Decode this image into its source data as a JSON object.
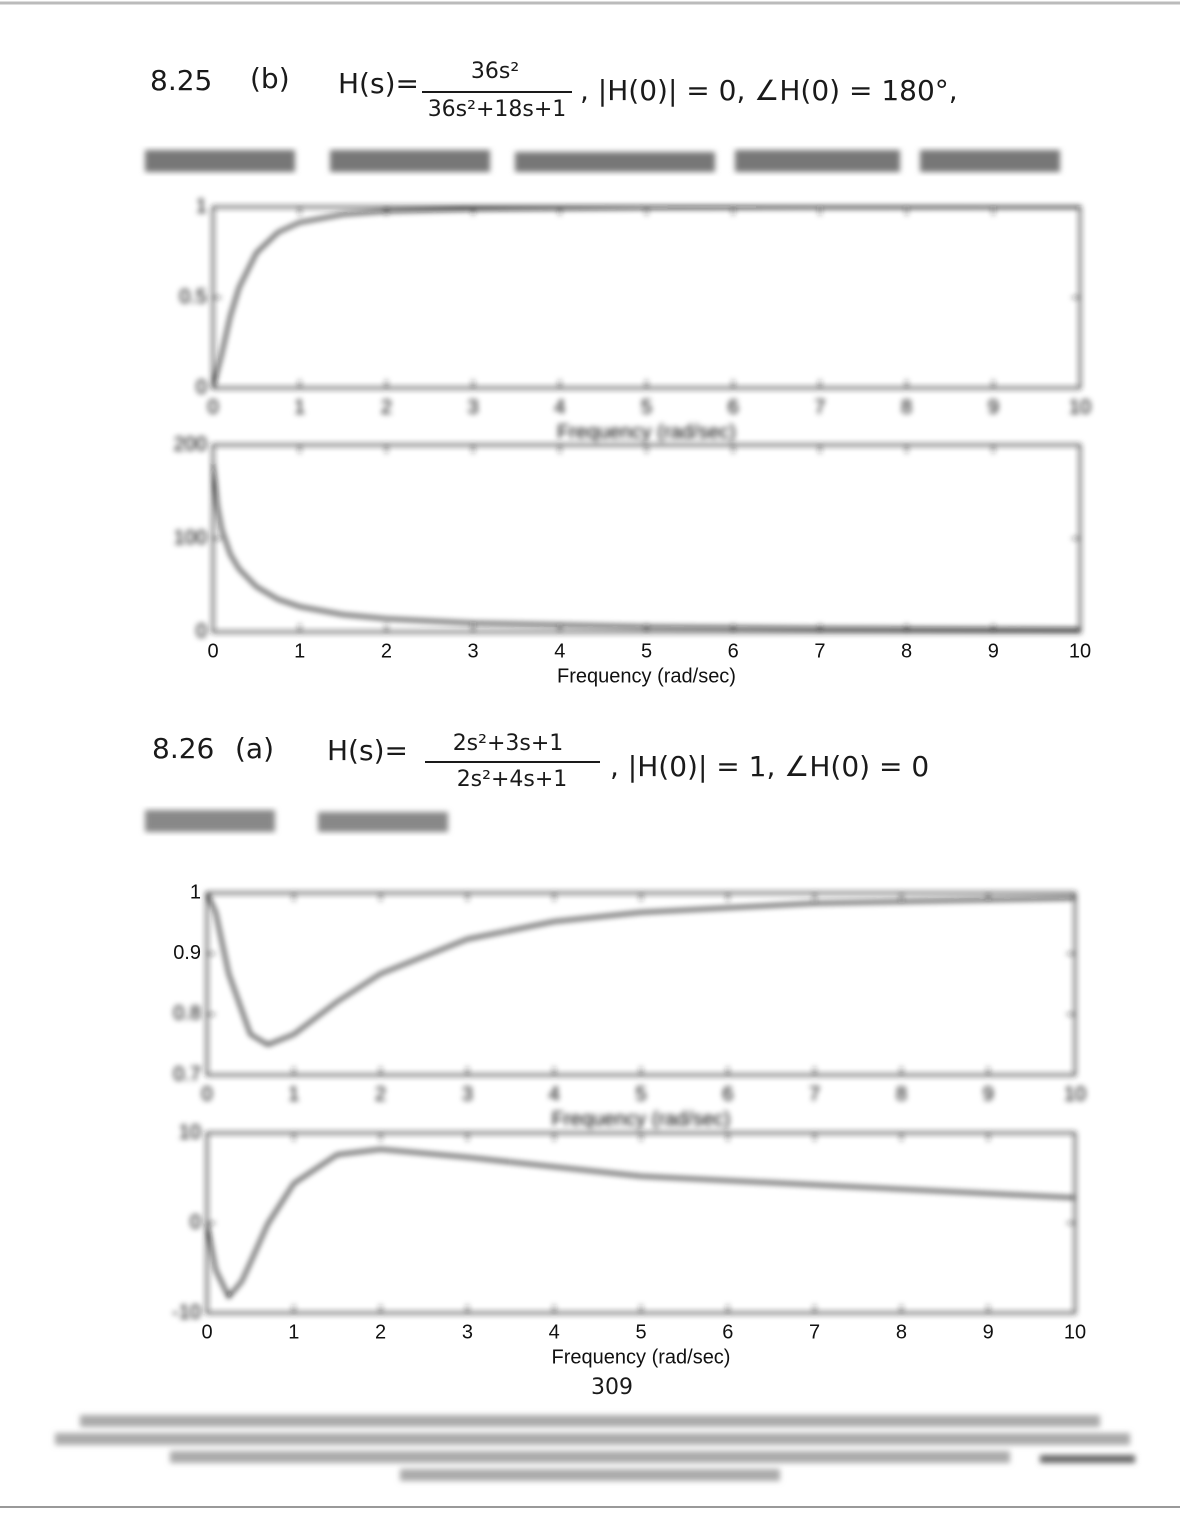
{
  "problems": [
    {
      "number": "8.25",
      "part": "(b)",
      "lhs": "H(s)=",
      "numerator": "36s²",
      "denominator": "36s²+18s+1",
      "rest": ", |H(0)| = 0, ∠H(0) = 180°,",
      "plots": [
        {
          "type": "line",
          "xlabel": "Frequency (rad/sec)",
          "xlim": [
            0,
            10
          ],
          "xticks": [
            0,
            1,
            2,
            3,
            4,
            5,
            6,
            7,
            8,
            9,
            10
          ],
          "ylim": [
            0,
            1
          ],
          "yticks": [
            0,
            0.5,
            1
          ],
          "x": [
            0,
            0.1,
            0.2,
            0.3,
            0.5,
            0.75,
            1,
            1.5,
            2,
            3,
            5,
            7,
            10
          ],
          "values": [
            0,
            0.188,
            0.397,
            0.554,
            0.747,
            0.86,
            0.915,
            0.959,
            0.977,
            0.989,
            0.996,
            0.998,
            0.999
          ]
        },
        {
          "type": "line",
          "xlabel": "Frequency (rad/sec)",
          "xlim": [
            0,
            10
          ],
          "xticks": [
            0,
            1,
            2,
            3,
            4,
            5,
            6,
            7,
            8,
            9,
            10
          ],
          "ylim": [
            0,
            200
          ],
          "yticks": [
            0,
            100,
            200
          ],
          "x": [
            0,
            0.05,
            0.1,
            0.2,
            0.3,
            0.5,
            0.75,
            1,
            1.5,
            2,
            3,
            5,
            7,
            10
          ],
          "values": [
            180,
            135.3,
            109.6,
            83,
            67.5,
            48.4,
            35,
            27.2,
            18.6,
            14.1,
            9.5,
            5.7,
            4.1,
            2.9
          ]
        }
      ]
    },
    {
      "number": "8.26",
      "part": "(a)",
      "lhs": "H(s)=",
      "numerator": "2s²+3s+1",
      "denominator": "2s²+4s+1",
      "rest": ", |H(0)| = 1, ∠H(0) = 0",
      "plots": [
        {
          "type": "line",
          "xlabel": "Frequency (rad/sec)",
          "xlim": [
            0,
            10
          ],
          "xticks": [
            0,
            1,
            2,
            3,
            4,
            5,
            6,
            7,
            8,
            9,
            10
          ],
          "ylim": [
            0.7,
            1
          ],
          "yticks": [
            0.7,
            0.8,
            0.9,
            1
          ],
          "x": [
            0,
            0.1,
            0.25,
            0.5,
            0.7,
            1,
            1.5,
            2,
            3,
            4,
            5,
            7,
            10
          ],
          "values": [
            1,
            0.968,
            0.867,
            0.767,
            0.75,
            0.767,
            0.821,
            0.867,
            0.924,
            0.953,
            0.968,
            0.983,
            0.9915
          ]
        },
        {
          "type": "line",
          "xlabel": "Frequency (rad/sec)",
          "xlim": [
            0,
            10
          ],
          "xticks": [
            0,
            1,
            2,
            3,
            4,
            5,
            6,
            7,
            8,
            9,
            10
          ],
          "ylim": [
            -10,
            10
          ],
          "yticks": [
            -10,
            0,
            10
          ],
          "x": [
            0,
            0.1,
            0.25,
            0.4,
            0.5,
            0.7,
            1,
            1.5,
            2,
            3,
            5,
            10
          ],
          "values": [
            0,
            -5.2,
            -8.2,
            -6.5,
            -4.4,
            -0.1,
            4.4,
            7.6,
            8.2,
            7.3,
            5.2,
            2.8
          ]
        }
      ]
    }
  ],
  "page_number": "309"
}
